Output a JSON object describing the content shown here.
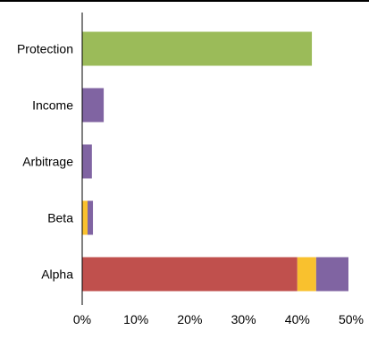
{
  "chart_data": {
    "type": "bar",
    "orientation": "horizontal",
    "stacked": true,
    "categories": [
      "Protection",
      "Income",
      "Arbitrage",
      "Beta",
      "Alpha"
    ],
    "series": [
      {
        "color": "#9bbb59",
        "values": [
          42.7,
          0,
          0,
          0,
          0
        ]
      },
      {
        "color": "#c0504d",
        "values": [
          0,
          0,
          0,
          0,
          40
        ]
      },
      {
        "color": "#f9c12e",
        "values": [
          0,
          0,
          0,
          1.0,
          3.5
        ]
      },
      {
        "color": "#8064a2",
        "values": [
          0,
          4.0,
          1.8,
          1.0,
          6.0
        ]
      }
    ],
    "xlim": [
      0,
      50
    ],
    "xticks": [
      0,
      10,
      20,
      30,
      40,
      50
    ],
    "xtick_labels": [
      "0%",
      "10%",
      "20%",
      "30%",
      "40%",
      "50%"
    ],
    "grid": false,
    "legend": "none"
  }
}
